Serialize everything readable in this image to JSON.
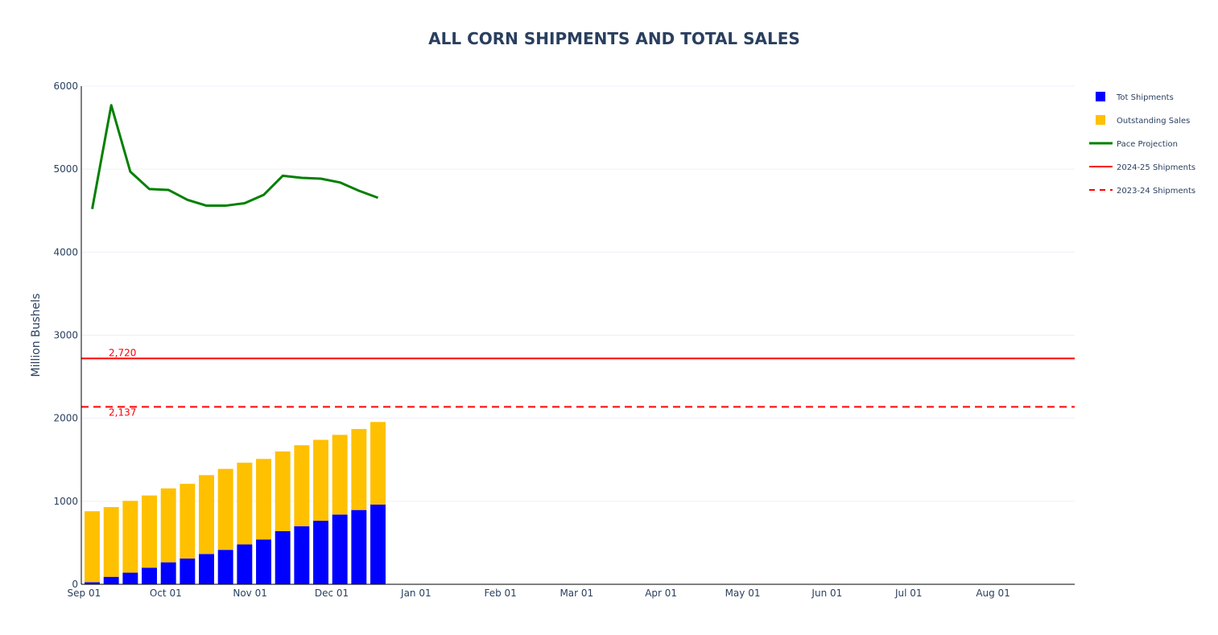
{
  "chart_data": {
    "type": "bar",
    "title": "ALL CORN SHIPMENTS AND TOTAL SALES",
    "xlabel": "",
    "ylabel": "Million Bushels",
    "ylim": [
      0,
      6000
    ],
    "yticks": [
      0,
      1000,
      2000,
      3000,
      4000,
      5000,
      6000
    ],
    "yticklabels": [
      "0",
      "1000",
      "2000",
      "3000",
      "4000",
      "5000",
      "6000"
    ],
    "xlim": [
      "2025-08-31",
      "2026-08-31"
    ],
    "xticks": [
      {
        "date": "2025-09-01",
        "label": "Sep 01"
      },
      {
        "date": "2025-10-01",
        "label": "Oct 01"
      },
      {
        "date": "2025-11-01",
        "label": "Nov 01"
      },
      {
        "date": "2025-12-01",
        "label": "Dec 01"
      },
      {
        "date": "2026-01-01",
        "label": "Jan 01"
      },
      {
        "date": "2026-02-01",
        "label": "Feb 01"
      },
      {
        "date": "2026-03-01",
        "label": "Mar 01"
      },
      {
        "date": "2026-04-01",
        "label": "Apr 01"
      },
      {
        "date": "2026-05-01",
        "label": "May 01"
      },
      {
        "date": "2026-06-01",
        "label": "Jun 01"
      },
      {
        "date": "2026-07-01",
        "label": "Jul 01"
      },
      {
        "date": "2026-08-01",
        "label": "Aug 01"
      }
    ],
    "barmode": "stack",
    "dates": [
      "2025-09-04",
      "2025-09-11",
      "2025-09-18",
      "2025-09-25",
      "2025-10-02",
      "2025-10-09",
      "2025-10-16",
      "2025-10-23",
      "2025-10-30",
      "2025-11-06",
      "2025-11-13",
      "2025-11-20",
      "2025-11-27",
      "2025-12-04",
      "2025-12-11",
      "2025-12-18"
    ],
    "series": [
      {
        "name": "Tot Shipments",
        "kind": "bar",
        "color": "#0000ff",
        "values": [
          25,
          90,
          140,
          200,
          265,
          310,
          365,
          415,
          480,
          540,
          640,
          700,
          765,
          840,
          895,
          960
        ]
      },
      {
        "name": "Outstanding Sales",
        "kind": "bar",
        "color": "#ffc000",
        "values": [
          855,
          840,
          865,
          870,
          890,
          900,
          950,
          975,
          985,
          970,
          960,
          975,
          975,
          960,
          975,
          995
        ]
      },
      {
        "name": "Pace Projection",
        "kind": "line",
        "color": "#008000",
        "values": [
          4520,
          5770,
          4970,
          4760,
          4750,
          4630,
          4560,
          4560,
          4590,
          4690,
          4920,
          4895,
          4885,
          4840,
          4740,
          4655
        ]
      }
    ],
    "reference_lines": [
      {
        "name": "2024-25 Shipments",
        "value": 2720,
        "label": "2,720",
        "color": "#ff0000",
        "dash": "solid"
      },
      {
        "name": "2023-24 Shipments",
        "value": 2137,
        "label": "2,137",
        "color": "#ff0000",
        "dash": "dashed"
      }
    ],
    "legend": {
      "position": "top-right",
      "items": [
        {
          "name": "Tot Shipments",
          "symbol": "square",
          "color": "#0000ff"
        },
        {
          "name": "Outstanding Sales",
          "symbol": "square",
          "color": "#ffc000"
        },
        {
          "name": "Pace Projection",
          "symbol": "line",
          "color": "#008000"
        },
        {
          "name": "2024-25 Shipments",
          "symbol": "line",
          "color": "#ff0000"
        },
        {
          "name": "2023-24 Shipments",
          "symbol": "dashed-line",
          "color": "#ff0000"
        }
      ]
    },
    "grid": true
  }
}
